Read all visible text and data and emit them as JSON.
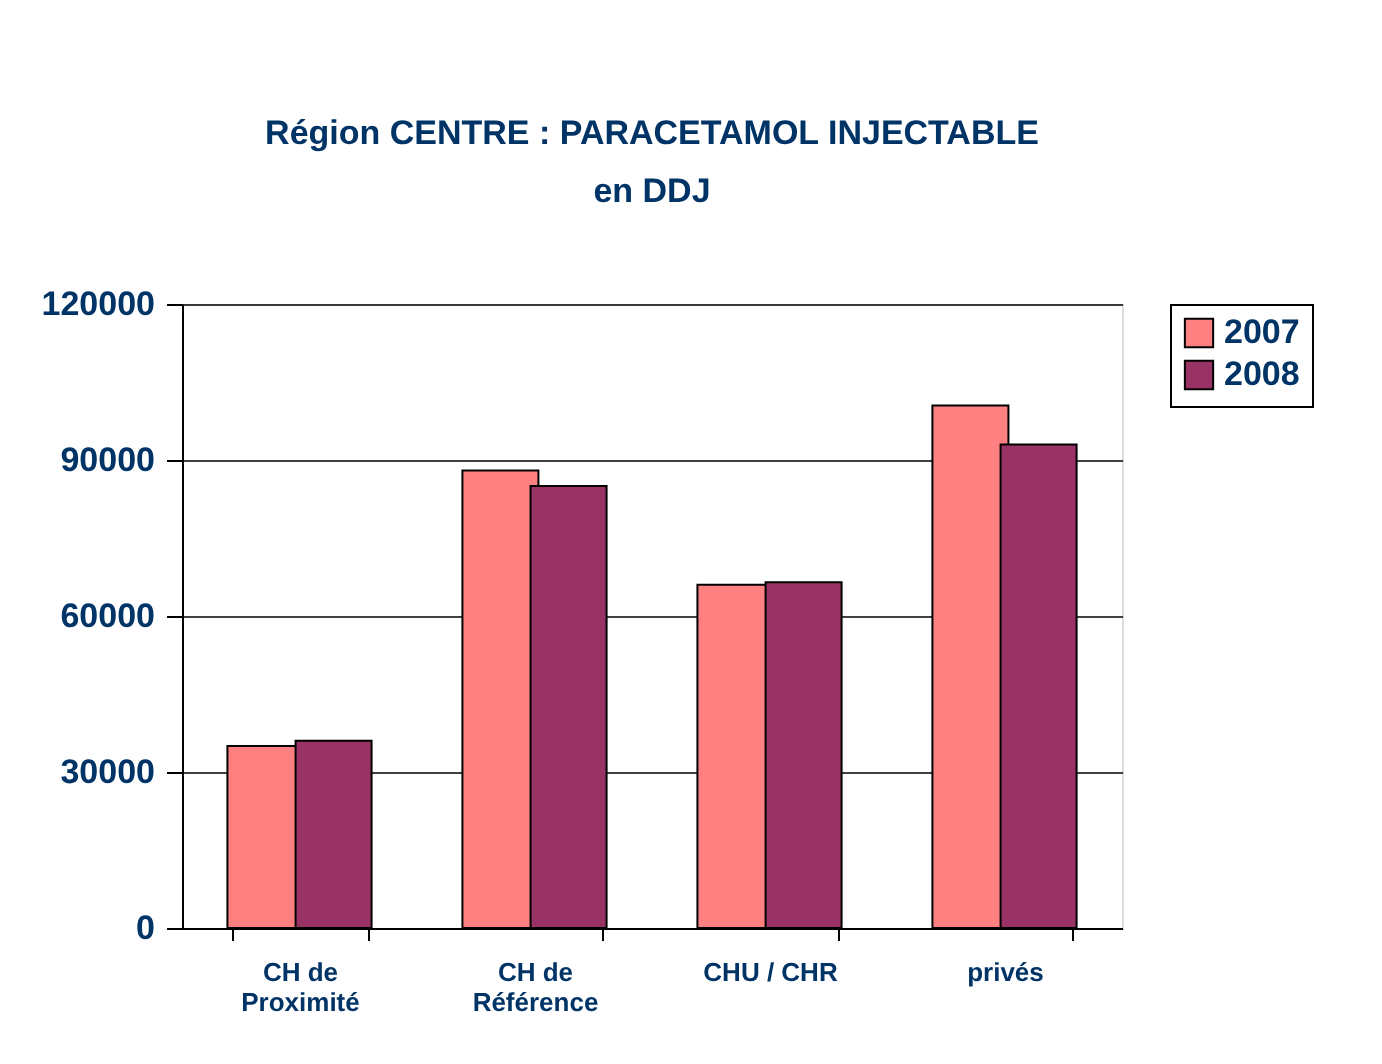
{
  "chart_data": {
    "type": "bar",
    "title": [
      "Région CENTRE : PARACETAMOL INJECTABLE",
      "en DDJ"
    ],
    "categories": [
      "CH de\nProximité",
      "CH de\nRéférence",
      "CHU / CHR",
      "privés"
    ],
    "series": [
      {
        "name": "2007",
        "color": "#ff8080",
        "values": [
          35000,
          88000,
          66000,
          100500
        ]
      },
      {
        "name": "2008",
        "color": "#993366",
        "values": [
          36000,
          85000,
          66500,
          93000
        ]
      }
    ],
    "ylim": [
      0,
      120000
    ],
    "yticks": [
      0,
      30000,
      60000,
      90000,
      120000
    ],
    "grid": "y",
    "legend": "right"
  }
}
